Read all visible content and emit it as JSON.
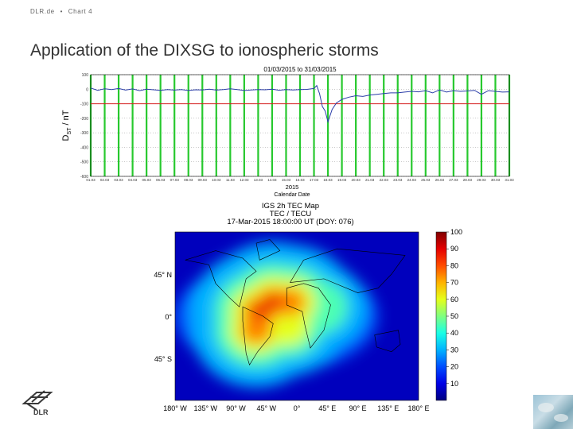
{
  "header": {
    "site": "DLR.de",
    "separator": "•",
    "chart_label": "Chart 4"
  },
  "title": "Application of the DIXSG to ionospheric storms",
  "logo": {
    "text": "DLR",
    "icon": "dlr-logo-icon"
  },
  "corner_image": {
    "icon": "satellite-photo-thumbnail"
  },
  "colors": {
    "dst_line": "#2a3da8",
    "reference_line": "#d62020",
    "day_markers": "#27c92e",
    "grid": "#777777"
  },
  "chart_data": [
    {
      "type": "line",
      "title": "01/03/2015 to 31/03/2015",
      "ylabel_main": "D",
      "ylabel_sub": "ST",
      "ylabel_unit": "/ nT",
      "xlabel_year": "2015",
      "xlabel": "Calendar Date",
      "ylim": [
        -600,
        100
      ],
      "yticks": [
        "100",
        "0",
        "-100",
        "-200",
        "-300",
        "-400",
        "-500",
        "-600"
      ],
      "xticks": [
        "01.03",
        "02.03",
        "03.03",
        "04.03",
        "05.03",
        "06.03",
        "07.03",
        "08.03",
        "09.03",
        "10.03",
        "11.03",
        "12.03",
        "13.03",
        "14.03",
        "15.03",
        "16.03",
        "17.03",
        "18.03",
        "19.03",
        "20.03",
        "21.03",
        "22.03",
        "23.03",
        "24.03",
        "25.03",
        "26.03",
        "27.03",
        "28.03",
        "29.03",
        "30.03",
        "31.03"
      ],
      "reference_line": -100,
      "grid": true,
      "series": [
        {
          "x": [
            0,
            0.5,
            1,
            1.5,
            2,
            2.5,
            3,
            3.5,
            4,
            4.5,
            5,
            5.5,
            6,
            6.5,
            7,
            7.5,
            8,
            8.5,
            9,
            9.5,
            10,
            10.5,
            11,
            11.5,
            12,
            12.5,
            13,
            13.5,
            14,
            14.5,
            15,
            15.5,
            16,
            16.2,
            16.4,
            16.6,
            16.8,
            17,
            17.3,
            17.6,
            18,
            18.5,
            19,
            19.5,
            20,
            20.5,
            21,
            21.5,
            22,
            22.5,
            23,
            23.5,
            24,
            24.5,
            25,
            25.5,
            26,
            26.5,
            27,
            27.5,
            28,
            28.5,
            29,
            29.5,
            30
          ],
          "values": [
            8,
            -8,
            3,
            -3,
            5,
            -6,
            2,
            -10,
            0,
            -4,
            -8,
            -2,
            -6,
            -3,
            -9,
            -4,
            -5,
            0,
            -6,
            -2,
            3,
            -3,
            -9,
            -5,
            -2,
            -4,
            0,
            -7,
            -3,
            -5,
            -2,
            -1,
            5,
            25,
            -30,
            -120,
            -150,
            -225,
            -140,
            -95,
            -70,
            -55,
            -45,
            -50,
            -40,
            -35,
            -30,
            -25,
            -25,
            -20,
            -15,
            -18,
            -10,
            -25,
            -5,
            -20,
            -10,
            -15,
            -12,
            -8,
            -35,
            -10,
            -15,
            -20,
            -18
          ]
        }
      ]
    },
    {
      "type": "heatmap",
      "title_line1": "IGS 2h TEC Map",
      "title_line2": "TEC / TECU",
      "title_line3": "17-Mar-2015 18:00:00 UT (DOY: 076)",
      "colorbar_ticks": [
        "100",
        "90",
        "80",
        "70",
        "60",
        "50",
        "40",
        "30",
        "20",
        "10"
      ],
      "colorbar_range": [
        0,
        100
      ],
      "yticks": [
        "45° N",
        "0°",
        "45° S"
      ],
      "xticks": [
        "180° W",
        "135° W",
        "90° W",
        "45° W",
        "0°",
        "45° E",
        "90° E",
        "135° E",
        "180° E"
      ],
      "xlim": [
        -180,
        180
      ],
      "ylim": [
        -90,
        90
      ],
      "enhancements": [
        {
          "lon": -55,
          "lat": 5,
          "peak_tecu": 95
        },
        {
          "lon": -35,
          "lat": 15,
          "peak_tecu": 92
        },
        {
          "lon": -10,
          "lat": 15,
          "peak_tecu": 85
        },
        {
          "lon": -60,
          "lat": -15,
          "peak_tecu": 85
        },
        {
          "lon": -15,
          "lat": -10,
          "peak_tecu": 70
        },
        {
          "lon": 30,
          "lat": 10,
          "peak_tecu": 55
        }
      ]
    }
  ]
}
